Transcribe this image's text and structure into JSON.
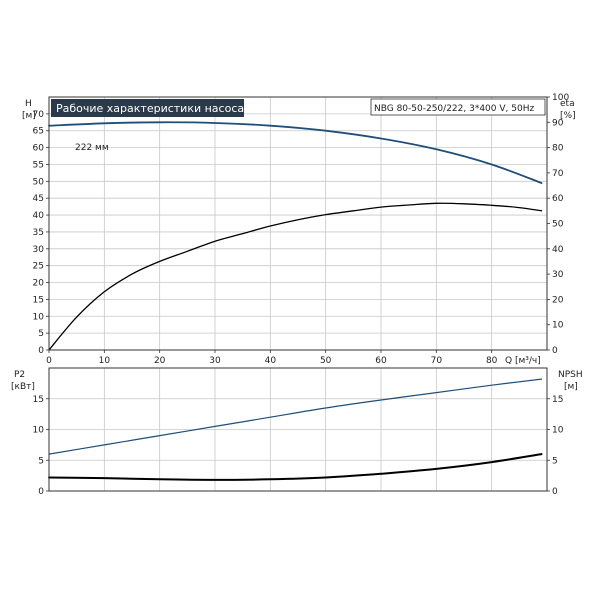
{
  "chart_data": {
    "type": "line",
    "title": "Рабочие характеристики насоса",
    "info": "NBG 80-50-250/222, 3*400 V, 50Hz",
    "colors": {
      "blue_curve": "#1f4e79",
      "black_curve": "#000000",
      "title_bg": "#2b3a4a",
      "grid": "#c8c8c8"
    },
    "x_axis": {
      "label": "Q [м³/ч]",
      "range": [
        0,
        90
      ],
      "ticks": [
        "0",
        "10",
        "20",
        "30",
        "40",
        "50",
        "60",
        "70",
        "80"
      ]
    },
    "top_panel": {
      "left_axis": {
        "name": "H",
        "unit": "[м]",
        "range": [
          0,
          75
        ],
        "ticks": [
          "0",
          "5",
          "10",
          "15",
          "20",
          "25",
          "30",
          "35",
          "40",
          "45",
          "50",
          "55",
          "60",
          "65",
          "70"
        ]
      },
      "right_axis": {
        "name": "eta",
        "unit": "[%]",
        "range": [
          0,
          100
        ],
        "ticks": [
          "0",
          "10",
          "20",
          "30",
          "40",
          "50",
          "60",
          "70",
          "80",
          "90",
          "100"
        ]
      },
      "series": [
        {
          "name": "222 мм",
          "axis": "left",
          "color": "#1f4e79",
          "x": [
            0,
            10,
            20,
            30,
            40,
            50,
            60,
            70,
            80,
            89
          ],
          "y": [
            66.5,
            67.2,
            67.5,
            67.3,
            66.5,
            65.0,
            62.7,
            59.5,
            55.0,
            49.5
          ]
        },
        {
          "name": "",
          "axis": "right",
          "color": "#000000",
          "x": [
            0,
            5,
            10,
            15,
            20,
            25,
            30,
            35,
            40,
            45,
            50,
            55,
            60,
            65,
            70,
            75,
            80,
            85,
            89
          ],
          "y": [
            0,
            13,
            23,
            30,
            35,
            39,
            43,
            46,
            49,
            51.5,
            53.5,
            55,
            56.5,
            57.3,
            58,
            57.8,
            57.2,
            56.3,
            55
          ]
        }
      ]
    },
    "bottom_panel": {
      "left_axis": {
        "name": "P2",
        "unit": "[кВт]",
        "range": [
          0,
          20
        ],
        "ticks": [
          "0",
          "5",
          "10",
          "15"
        ]
      },
      "right_axis": {
        "name": "NPSH",
        "unit": "[м]",
        "range": [
          0,
          20
        ],
        "ticks": [
          "0",
          "5",
          "10",
          "15"
        ]
      },
      "series": [
        {
          "name": "",
          "axis": "left",
          "color": "#1f4e79",
          "x": [
            0,
            10,
            20,
            30,
            40,
            50,
            60,
            70,
            80,
            89
          ],
          "y": [
            6.0,
            7.5,
            9.0,
            10.5,
            12.0,
            13.5,
            14.8,
            16.0,
            17.2,
            18.2
          ]
        },
        {
          "name": "",
          "axis": "right",
          "color": "#000000",
          "x": [
            0,
            10,
            20,
            30,
            40,
            50,
            60,
            70,
            80,
            89
          ],
          "y": [
            2.2,
            2.1,
            1.9,
            1.8,
            1.9,
            2.2,
            2.8,
            3.6,
            4.7,
            6.0
          ]
        }
      ]
    }
  }
}
